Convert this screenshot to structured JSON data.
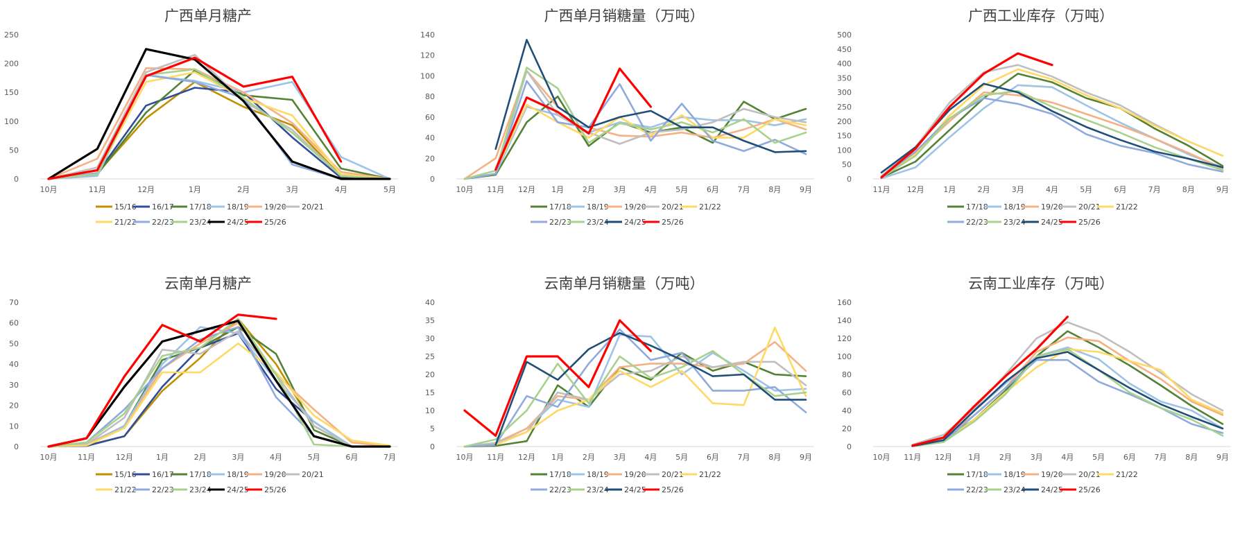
{
  "chart_data": [
    {
      "type": "line",
      "title": "广西单月糖产",
      "categories": [
        "10月",
        "11月",
        "12月",
        "1月",
        "2月",
        "3月",
        "4月",
        "5月"
      ],
      "ylim": [
        0,
        250
      ],
      "yticks": [
        0,
        50,
        100,
        150,
        200,
        250
      ],
      "grid": false,
      "legend_position": "bottom",
      "series": [
        {
          "name": "15/16",
          "color": "#C09000",
          "values": [
            0,
            10,
            105,
            168,
            125,
            93,
            5,
            0
          ]
        },
        {
          "name": "16/17",
          "color": "#2F4D9A",
          "values": [
            0,
            10,
            127,
            158,
            150,
            72,
            2,
            0
          ]
        },
        {
          "name": "17/18",
          "color": "#548235",
          "values": [
            0,
            8,
            115,
            188,
            145,
            137,
            18,
            0
          ]
        },
        {
          "name": "18/19",
          "color": "#9DC3E6",
          "values": [
            0,
            5,
            180,
            170,
            150,
            168,
            38,
            0
          ]
        },
        {
          "name": "19/20",
          "color": "#F4B183",
          "values": [
            0,
            35,
            192,
            190,
            150,
            97,
            12,
            0
          ]
        },
        {
          "name": "20/21",
          "color": "#BFBFBF",
          "values": [
            0,
            20,
            185,
            215,
            135,
            85,
            5,
            0
          ]
        },
        {
          "name": "21/22",
          "color": "#FFD966",
          "values": [
            0,
            10,
            168,
            185,
            140,
            110,
            8,
            0
          ]
        },
        {
          "name": "22/23",
          "color": "#8FAADC",
          "values": [
            0,
            10,
            180,
            168,
            140,
            25,
            0,
            0
          ]
        },
        {
          "name": "23/24",
          "color": "#A9D18E",
          "values": [
            0,
            8,
            180,
            190,
            140,
            80,
            5,
            0
          ]
        },
        {
          "name": "24/25",
          "color": "#000000",
          "values": [
            0,
            52,
            225,
            207,
            135,
            30,
            0,
            0
          ]
        },
        {
          "name": "25/26",
          "color": "#FF0000",
          "values": [
            0,
            15,
            178,
            210,
            160,
            177,
            30,
            null
          ]
        }
      ]
    },
    {
      "type": "line",
      "title": "广西单月销糖量（万吨）",
      "categories": [
        "10月",
        "11月",
        "12月",
        "1月",
        "2月",
        "3月",
        "4月",
        "5月",
        "6月",
        "7月",
        "8月",
        "9月"
      ],
      "ylim": [
        0,
        140
      ],
      "yticks": [
        0,
        20,
        40,
        60,
        80,
        100,
        120,
        140
      ],
      "grid": false,
      "legend_position": "bottom",
      "series": [
        {
          "name": "17/18",
          "color": "#548235",
          "values": [
            0,
            4,
            55,
            80,
            32,
            55,
            45,
            50,
            35,
            75,
            58,
            68
          ]
        },
        {
          "name": "18/19",
          "color": "#9DC3E6",
          "values": [
            0,
            5,
            70,
            62,
            45,
            55,
            50,
            60,
            57,
            57,
            52,
            58
          ]
        },
        {
          "name": "19/20",
          "color": "#F4B183",
          "values": [
            0,
            20,
            105,
            70,
            50,
            42,
            41,
            45,
            40,
            48,
            58,
            48
          ]
        },
        {
          "name": "20/21",
          "color": "#BFBFBF",
          "values": [
            0,
            5,
            105,
            62,
            45,
            34,
            45,
            48,
            55,
            68,
            60,
            55
          ]
        },
        {
          "name": "21/22",
          "color": "#FFD966",
          "values": [
            0,
            8,
            72,
            55,
            40,
            60,
            42,
            62,
            40,
            40,
            58,
            52
          ]
        },
        {
          "name": "22/23",
          "color": "#8FAADC",
          "values": [
            0,
            5,
            95,
            55,
            50,
            92,
            37,
            73,
            37,
            27,
            38,
            24
          ]
        },
        {
          "name": "23/24",
          "color": "#A9D18E",
          "values": [
            0,
            8,
            108,
            88,
            35,
            54,
            48,
            55,
            45,
            58,
            35,
            45
          ]
        },
        {
          "name": "24/25",
          "color": "#1F4E79",
          "values": [
            null,
            29,
            135,
            70,
            50,
            60,
            66,
            50,
            50,
            37,
            26,
            27
          ]
        },
        {
          "name": "25/26",
          "color": "#FF0000",
          "values": [
            null,
            9,
            79,
            65,
            44,
            107,
            70,
            null,
            null,
            null,
            null,
            null
          ]
        }
      ]
    },
    {
      "type": "line",
      "title": "广西工业库存（万吨）",
      "categories": [
        "11月",
        "12月",
        "1月",
        "2月",
        "3月",
        "4月",
        "5月",
        "6月",
        "7月",
        "8月",
        "9月"
      ],
      "ylim": [
        0,
        500
      ],
      "yticks": [
        0,
        50,
        100,
        150,
        200,
        250,
        300,
        350,
        400,
        450,
        500
      ],
      "grid": false,
      "legend_position": "bottom",
      "series": [
        {
          "name": "17/18",
          "color": "#548235",
          "values": [
            5,
            60,
            170,
            280,
            365,
            335,
            280,
            245,
            175,
            115,
            45
          ]
        },
        {
          "name": "18/19",
          "color": "#9DC3E6",
          "values": [
            2,
            40,
            145,
            245,
            325,
            318,
            255,
            195,
            140,
            85,
            40
          ]
        },
        {
          "name": "19/20",
          "color": "#F4B183",
          "values": [
            5,
            90,
            200,
            300,
            290,
            265,
            225,
            185,
            140,
            90,
            35
          ]
        },
        {
          "name": "20/21",
          "color": "#BFBFBF",
          "values": [
            10,
            110,
            265,
            370,
            395,
            355,
            300,
            255,
            190,
            130,
            80
          ]
        },
        {
          "name": "21/22",
          "color": "#FFD966",
          "values": [
            5,
            85,
            220,
            325,
            380,
            345,
            290,
            245,
            185,
            130,
            80
          ]
        },
        {
          "name": "22/23",
          "color": "#8FAADC",
          "values": [
            5,
            95,
            210,
            280,
            260,
            225,
            155,
            115,
            90,
            50,
            25
          ]
        },
        {
          "name": "23/24",
          "color": "#A9D18E",
          "values": [
            5,
            80,
            210,
            290,
            305,
            250,
            205,
            160,
            110,
            70,
            30
          ]
        },
        {
          "name": "24/25",
          "color": "#1F4E79",
          "values": [
            22,
            110,
            240,
            330,
            300,
            235,
            180,
            135,
            95,
            70,
            40
          ]
        },
        {
          "name": "25/26",
          "color": "#FF0000",
          "values": [
            5,
            105,
            250,
            365,
            435,
            395,
            null,
            null,
            null,
            null,
            null
          ]
        }
      ]
    },
    {
      "type": "line",
      "title": "云南单月糖产",
      "categories": [
        "10月",
        "11月",
        "12月",
        "1月",
        "2月",
        "3月",
        "4月",
        "5月",
        "6月",
        "7月"
      ],
      "ylim": [
        0,
        70
      ],
      "yticks": [
        0,
        10,
        20,
        30,
        40,
        50,
        60,
        70
      ],
      "grid": false,
      "legend_position": "bottom",
      "series": [
        {
          "name": "15/16",
          "color": "#C09000",
          "values": [
            0,
            0.5,
            5,
            27,
            43,
            62,
            40,
            10,
            0,
            0
          ]
        },
        {
          "name": "16/17",
          "color": "#2F4D9A",
          "values": [
            0,
            0.3,
            5,
            29,
            48,
            55,
            28,
            12,
            0,
            0
          ]
        },
        {
          "name": "17/18",
          "color": "#548235",
          "values": [
            0,
            1,
            10,
            42,
            48,
            58,
            45,
            8,
            0,
            0
          ]
        },
        {
          "name": "18/19",
          "color": "#9DC3E6",
          "values": [
            0,
            1,
            10,
            40,
            58,
            55,
            32,
            12,
            0,
            0
          ]
        },
        {
          "name": "19/20",
          "color": "#F4B183",
          "values": [
            0,
            1,
            9,
            38,
            50,
            60,
            35,
            18,
            2,
            0
          ]
        },
        {
          "name": "20/21",
          "color": "#BFBFBF",
          "values": [
            0,
            1,
            14,
            47,
            45,
            56,
            35,
            10,
            0,
            0
          ]
        },
        {
          "name": "21/22",
          "color": "#FFD966",
          "values": [
            0,
            0.5,
            9,
            36,
            36,
            50,
            36,
            15,
            3,
            0.5
          ]
        },
        {
          "name": "22/23",
          "color": "#8FAADC",
          "values": [
            0,
            2,
            18,
            38,
            52,
            58,
            24,
            5,
            0,
            0
          ]
        },
        {
          "name": "23/24",
          "color": "#A9D18E",
          "values": [
            0,
            2,
            16,
            44,
            48,
            62,
            35,
            1,
            0,
            0
          ]
        },
        {
          "name": "24/25",
          "color": "#000000",
          "values": [
            0,
            4,
            29,
            51,
            56,
            61,
            32,
            5,
            0,
            0
          ]
        },
        {
          "name": "25/26",
          "color": "#FF0000",
          "values": [
            0,
            4,
            34,
            59,
            51,
            64,
            62,
            null,
            null,
            null
          ]
        }
      ]
    },
    {
      "type": "line",
      "title": "云南单月销糖量（万吨）",
      "categories": [
        "10月",
        "11月",
        "12月",
        "1月",
        "2月",
        "3月",
        "4月",
        "5月",
        "6月",
        "7月",
        "8月",
        "9月"
      ],
      "ylim": [
        0,
        40
      ],
      "yticks": [
        0,
        5,
        10,
        15,
        20,
        25,
        30,
        35,
        40
      ],
      "grid": false,
      "legend_position": "bottom",
      "series": [
        {
          "name": "17/18",
          "color": "#548235",
          "values": [
            0,
            0.2,
            1.5,
            17,
            11,
            22,
            18.5,
            26,
            21,
            23.5,
            20,
            19.5
          ]
        },
        {
          "name": "18/19",
          "color": "#9DC3E6",
          "values": [
            0,
            1,
            5,
            13,
            11,
            31,
            30.5,
            20,
            26,
            21,
            15.5,
            16
          ]
        },
        {
          "name": "19/20",
          "color": "#F4B183",
          "values": [
            0,
            1,
            5,
            14,
            13,
            22,
            23,
            23,
            22,
            23,
            29,
            21
          ]
        },
        {
          "name": "20/21",
          "color": "#BFBFBF",
          "values": [
            0,
            1,
            4,
            15,
            13,
            20,
            21,
            25,
            22,
            23.5,
            23.5,
            17
          ]
        },
        {
          "name": "21/22",
          "color": "#FFD966",
          "values": [
            0,
            0.5,
            4,
            10,
            13,
            21,
            16.5,
            21,
            12,
            11.5,
            33,
            14
          ]
        },
        {
          "name": "22/23",
          "color": "#8FAADC",
          "values": [
            0,
            0.5,
            14,
            11,
            23,
            32.5,
            24,
            26,
            15.5,
            15.5,
            16.5,
            9.5
          ]
        },
        {
          "name": "23/24",
          "color": "#A9D18E",
          "values": [
            0,
            2,
            10,
            23,
            12,
            25,
            19,
            22,
            26.5,
            20,
            14,
            15
          ]
        },
        {
          "name": "24/25",
          "color": "#1F4E79",
          "values": [
            null,
            0.5,
            23.5,
            18.5,
            27,
            31.5,
            28,
            24,
            19.5,
            20,
            13,
            13
          ]
        },
        {
          "name": "25/26",
          "color": "#FF0000",
          "values": [
            10,
            3,
            25,
            25,
            16.5,
            35,
            26.5,
            null,
            null,
            null,
            null,
            null
          ]
        }
      ]
    },
    {
      "type": "line",
      "title": "云南工业库存（万吨）",
      "categories": [
        "10月",
        "11月",
        "12月",
        "1月",
        "2月",
        "3月",
        "4月",
        "5月",
        "6月",
        "7月",
        "8月",
        "9月"
      ],
      "ylim": [
        0,
        160
      ],
      "yticks": [
        0,
        20,
        40,
        60,
        80,
        100,
        120,
        140,
        160
      ],
      "grid": false,
      "legend_position": "bottom",
      "series": [
        {
          "name": "17/18",
          "color": "#548235",
          "values": [
            null,
            1,
            8,
            30,
            62,
            100,
            128,
            110,
            90,
            68,
            45,
            25
          ]
        },
        {
          "name": "18/19",
          "color": "#9DC3E6",
          "values": [
            null,
            0.5,
            8,
            40,
            70,
            100,
            110,
            97,
            70,
            50,
            40,
            20
          ]
        },
        {
          "name": "19/20",
          "color": "#F4B183",
          "values": [
            null,
            1,
            10,
            35,
            65,
            105,
            121,
            117,
            95,
            75,
            50,
            35
          ]
        },
        {
          "name": "20/21",
          "color": "#BFBFBF",
          "values": [
            null,
            2,
            13,
            42,
            80,
            120,
            138,
            125,
            105,
            82,
            58,
            40
          ]
        },
        {
          "name": "21/22",
          "color": "#FFD966",
          "values": [
            null,
            0.5,
            6,
            30,
            60,
            88,
            108,
            105,
            95,
            85,
            52,
            37
          ]
        },
        {
          "name": "22/23",
          "color": "#8FAADC",
          "values": [
            null,
            0.5,
            5,
            35,
            65,
            96,
            96,
            72,
            58,
            43,
            25,
            15
          ]
        },
        {
          "name": "23/24",
          "color": "#A9D18E",
          "values": [
            null,
            0.5,
            5,
            28,
            58,
            100,
            108,
            85,
            60,
            43,
            30,
            12
          ]
        },
        {
          "name": "24/25",
          "color": "#1F4E79",
          "values": [
            null,
            0.5,
            7,
            40,
            72,
            98,
            105,
            85,
            65,
            47,
            33,
            20
          ]
        },
        {
          "name": "25/26",
          "color": "#FF0000",
          "values": [
            null,
            1,
            10,
            45,
            78,
            108,
            144,
            null,
            null,
            null,
            null,
            null
          ]
        }
      ]
    }
  ]
}
